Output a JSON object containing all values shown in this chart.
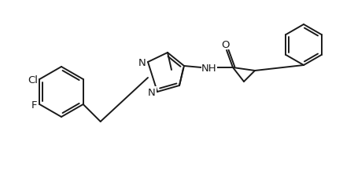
{
  "background_color": "#ffffff",
  "line_color": "#1a1a1a",
  "line_width": 1.4,
  "font_size": 9.5,
  "figsize": [
    4.36,
    2.28
  ],
  "dpi": 100,
  "atoms": {
    "F": {
      "label": "F"
    },
    "Cl": {
      "label": "Cl"
    },
    "N": {
      "label": "N"
    },
    "NH": {
      "label": "NH"
    },
    "O": {
      "label": "O"
    }
  }
}
